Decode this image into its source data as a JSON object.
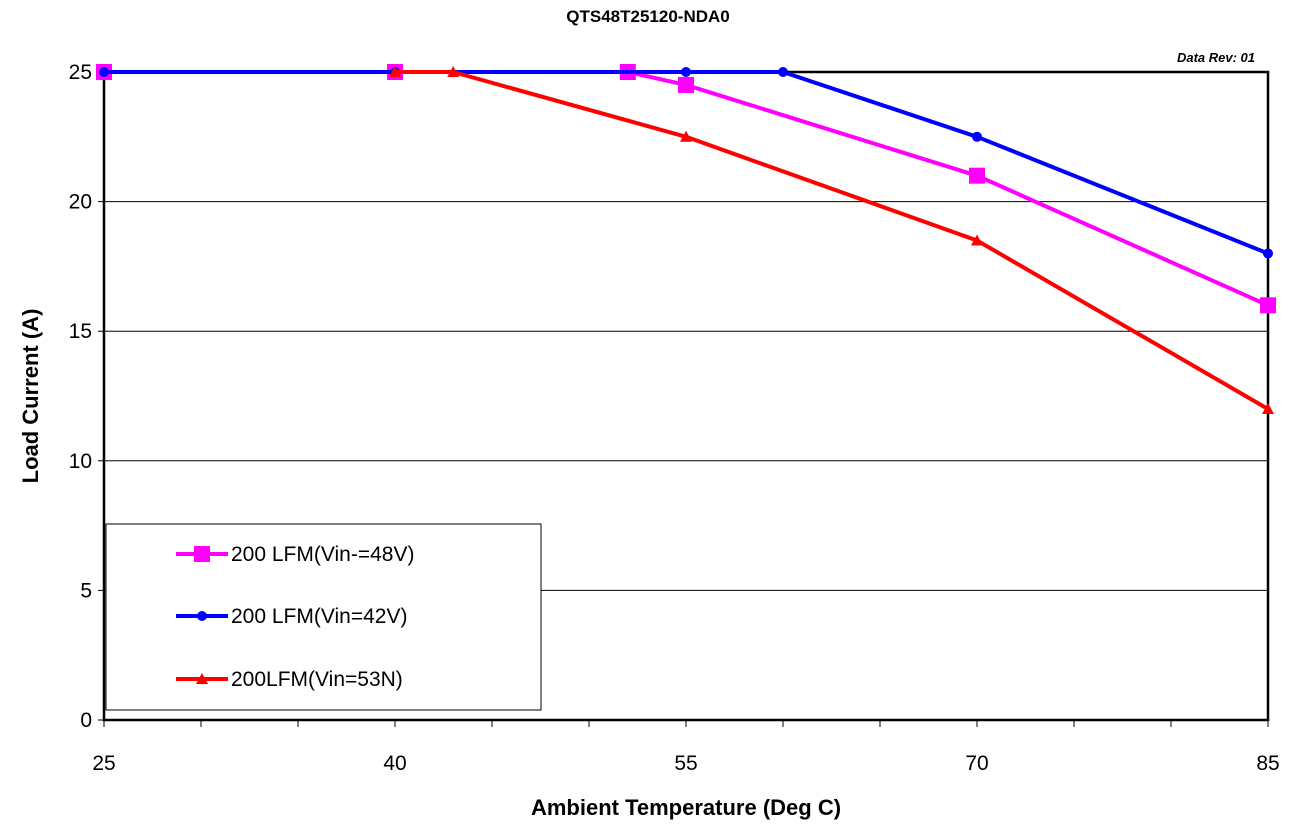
{
  "chart_data": {
    "type": "line",
    "title": "QTS48T25120-NDA0",
    "subtitle": "Data Rev:  01",
    "xlabel": "Ambient Temperature (Deg C)",
    "ylabel": "Load Current (A)",
    "xlim": [
      25,
      85
    ],
    "ylim": [
      0,
      25
    ],
    "xticks": [
      25,
      40,
      55,
      70,
      85
    ],
    "xminor_step": 5,
    "yticks": [
      0,
      5,
      10,
      15,
      20,
      25
    ],
    "grid": "horizontal",
    "legend_position": "bottom-left",
    "series": [
      {
        "name": "200 LFM(Vin-=48V)",
        "color": "#ff00ff",
        "marker": "square",
        "x": [
          25,
          40,
          52,
          55,
          70,
          85
        ],
        "y": [
          25,
          25,
          25,
          24.5,
          21,
          16
        ]
      },
      {
        "name": "200 LFM(Vin=42V)",
        "color": "#0000ff",
        "marker": "circle",
        "x": [
          25,
          40,
          55,
          60,
          70,
          85
        ],
        "y": [
          25,
          25,
          25,
          25,
          22.5,
          18
        ]
      },
      {
        "name": "200LFM(Vin=53N)",
        "color": "#ff0000",
        "marker": "triangle",
        "x": [
          40,
          43,
          55,
          70,
          85
        ],
        "y": [
          25,
          25,
          22.5,
          18.5,
          12
        ]
      }
    ]
  }
}
